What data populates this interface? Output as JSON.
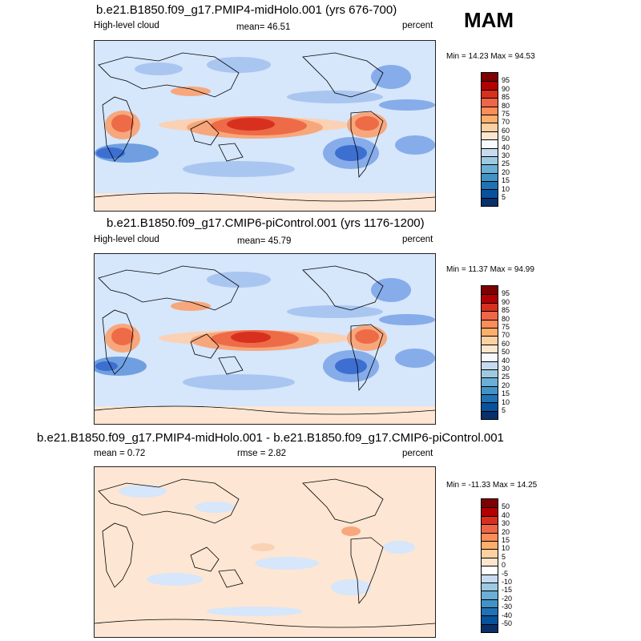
{
  "season": "MAM",
  "panels": [
    {
      "id": "p1",
      "title": "b.e21.B1850.f09_g17.PMIP4-midHolo.001 (yrs 676-700)",
      "left_label": "High-level cloud",
      "center_label": "mean=  46.51",
      "right_label": "percent",
      "minmax": "Min =  14.23 Max =  94.53",
      "colorbar": {
        "labels": [
          "95",
          "90",
          "85",
          "80",
          "75",
          "70",
          "60",
          "50",
          "40",
          "30",
          "25",
          "20",
          "15",
          "10",
          "5"
        ],
        "colors": [
          "#7f0000",
          "#b30000",
          "#d7301f",
          "#ef6548",
          "#fc8d59",
          "#fdae6b",
          "#fdd0a2",
          "#fee6ce",
          "#f7fbff",
          "#c6dbef",
          "#9ecae1",
          "#6baed6",
          "#4292c6",
          "#2171b5",
          "#08519c",
          "#08306b"
        ]
      }
    },
    {
      "id": "p2",
      "title": "b.e21.B1850.f09_g17.CMIP6-piControl.001 (yrs 1176-1200)",
      "left_label": "High-level cloud",
      "center_label": "mean=  45.79",
      "right_label": "percent",
      "minmax": "Min =  11.37 Max =  94.99",
      "colorbar": {
        "labels": [
          "95",
          "90",
          "85",
          "80",
          "75",
          "70",
          "60",
          "50",
          "40",
          "30",
          "25",
          "20",
          "15",
          "10",
          "5"
        ],
        "colors": [
          "#7f0000",
          "#b30000",
          "#d7301f",
          "#ef6548",
          "#fc8d59",
          "#fdae6b",
          "#fdd0a2",
          "#fee6ce",
          "#f7fbff",
          "#c6dbef",
          "#9ecae1",
          "#6baed6",
          "#4292c6",
          "#2171b5",
          "#08519c",
          "#08306b"
        ]
      }
    },
    {
      "id": "p3",
      "title": "b.e21.B1850.f09_g17.PMIP4-midHolo.001 - b.e21.B1850.f09_g17.CMIP6-piControl.001",
      "left_label": "mean =   0.72",
      "center_label": "rmse =   2.82",
      "right_label": "percent",
      "minmax": "Min = -11.33 Max =  14.25",
      "colorbar": {
        "labels": [
          "50",
          "40",
          "30",
          "20",
          "15",
          "10",
          "5",
          "0",
          "-5",
          "-10",
          "-15",
          "-20",
          "-30",
          "-40",
          "-50"
        ],
        "colors": [
          "#7f0000",
          "#b30000",
          "#d7301f",
          "#ef6548",
          "#fc8d59",
          "#fdae6b",
          "#fdd0a2",
          "#fee6ce",
          "#ffffff",
          "#c6dbef",
          "#9ecae1",
          "#6baed6",
          "#4292c6",
          "#2171b5",
          "#08519c",
          "#08306b"
        ]
      }
    }
  ],
  "chart_data": [
    {
      "type": "heatmap",
      "title": "b.e21.B1850.f09_g17.PMIP4-midHolo.001 (yrs 676-700)",
      "variable": "High-level cloud",
      "units": "percent",
      "mean": 46.51,
      "min": 14.23,
      "max": 94.53,
      "season": "MAM",
      "contour_levels": [
        5,
        10,
        15,
        20,
        25,
        30,
        40,
        50,
        60,
        70,
        75,
        80,
        85,
        90,
        95
      ]
    },
    {
      "type": "heatmap",
      "title": "b.e21.B1850.f09_g17.CMIP6-piControl.001 (yrs 1176-1200)",
      "variable": "High-level cloud",
      "units": "percent",
      "mean": 45.79,
      "min": 11.37,
      "max": 94.99,
      "season": "MAM",
      "contour_levels": [
        5,
        10,
        15,
        20,
        25,
        30,
        40,
        50,
        60,
        70,
        75,
        80,
        85,
        90,
        95
      ]
    },
    {
      "type": "heatmap",
      "title": "b.e21.B1850.f09_g17.PMIP4-midHolo.001 - b.e21.B1850.f09_g17.CMIP6-piControl.001",
      "units": "percent",
      "mean": 0.72,
      "rmse": 2.82,
      "min": -11.33,
      "max": 14.25,
      "season": "MAM",
      "contour_levels": [
        -50,
        -40,
        -30,
        -20,
        -15,
        -10,
        -5,
        0,
        5,
        10,
        15,
        20,
        30,
        40,
        50
      ]
    }
  ]
}
